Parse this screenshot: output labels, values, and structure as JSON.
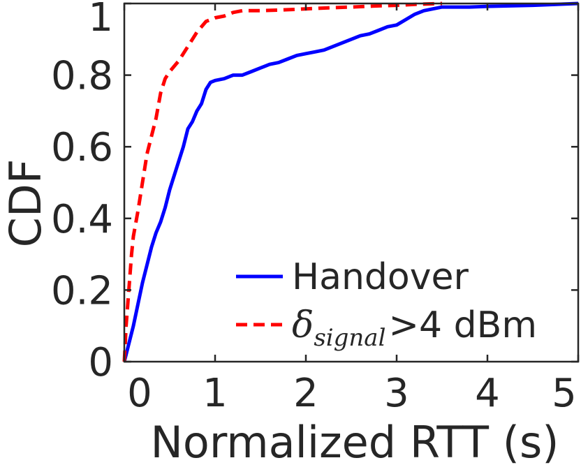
{
  "chart_data": {
    "type": "line",
    "xlabel": "Normalized RTT (s)",
    "ylabel": "CDF",
    "xlim": [
      0,
      5
    ],
    "ylim": [
      0,
      1
    ],
    "xticks": [
      "0",
      "1",
      "2",
      "3",
      "4",
      "5"
    ],
    "yticks": [
      "0",
      "0.2",
      "0.4",
      "0.6",
      "0.8",
      "1"
    ],
    "grid": false,
    "legend_position": "bottom-right",
    "series": [
      {
        "name": "Handover",
        "color": "#0000ff",
        "style": "solid",
        "x": [
          0,
          0.05,
          0.1,
          0.15,
          0.2,
          0.25,
          0.3,
          0.35,
          0.4,
          0.45,
          0.5,
          0.55,
          0.6,
          0.65,
          0.7,
          0.75,
          0.8,
          0.85,
          0.9,
          0.95,
          1.0,
          1.1,
          1.2,
          1.3,
          1.4,
          1.5,
          1.6,
          1.7,
          1.8,
          1.9,
          2.0,
          2.1,
          2.2,
          2.3,
          2.4,
          2.5,
          2.6,
          2.7,
          2.8,
          2.9,
          3.0,
          3.1,
          3.2,
          3.3,
          3.4,
          3.5,
          3.8,
          4.0,
          4.5,
          5.0
        ],
        "y": [
          0,
          0.05,
          0.1,
          0.16,
          0.22,
          0.27,
          0.32,
          0.36,
          0.39,
          0.43,
          0.48,
          0.52,
          0.56,
          0.6,
          0.65,
          0.67,
          0.7,
          0.72,
          0.76,
          0.78,
          0.785,
          0.79,
          0.8,
          0.8,
          0.81,
          0.82,
          0.83,
          0.835,
          0.845,
          0.855,
          0.86,
          0.865,
          0.87,
          0.88,
          0.89,
          0.9,
          0.91,
          0.915,
          0.925,
          0.935,
          0.94,
          0.955,
          0.97,
          0.98,
          0.985,
          0.99,
          0.99,
          0.992,
          0.995,
          1.0
        ]
      },
      {
        "name": "δsignal >4 dBm",
        "color": "#ff0000",
        "style": "dashed",
        "x": [
          0,
          0.02,
          0.05,
          0.08,
          0.1,
          0.15,
          0.2,
          0.25,
          0.3,
          0.35,
          0.4,
          0.45,
          0.5,
          0.6,
          0.7,
          0.8,
          0.9,
          1.0,
          1.1,
          1.2,
          1.3,
          1.4,
          1.5,
          1.75,
          2.0,
          2.25,
          2.5,
          2.75,
          3.0,
          3.25,
          3.5
        ],
        "y": [
          0,
          0.1,
          0.2,
          0.3,
          0.35,
          0.42,
          0.5,
          0.58,
          0.63,
          0.68,
          0.75,
          0.79,
          0.81,
          0.84,
          0.88,
          0.92,
          0.95,
          0.96,
          0.965,
          0.975,
          0.98,
          0.98,
          0.98,
          0.982,
          0.985,
          0.988,
          0.99,
          0.993,
          0.995,
          0.998,
          1.0
        ]
      }
    ]
  },
  "legend": {
    "items": [
      {
        "label": "Handover"
      },
      {
        "delta": "δ",
        "sub": "signal",
        "suffix": ">4 dBm"
      }
    ]
  }
}
